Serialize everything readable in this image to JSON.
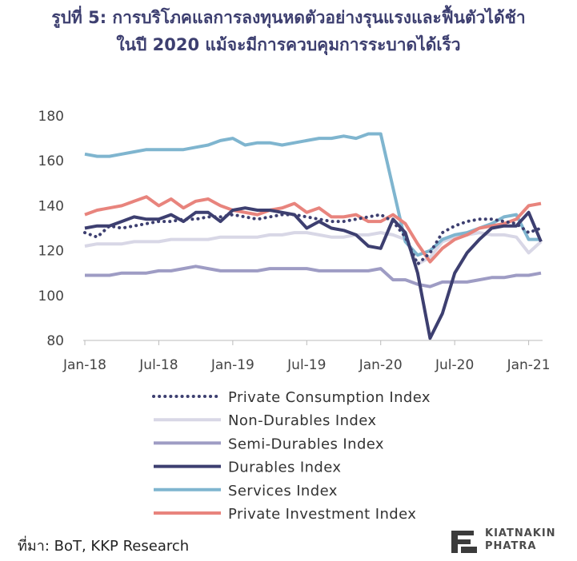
{
  "header": {
    "title_line1": "รูปที่ 5: การบริโภคแลการลงทุนหดตัวอย่างรุนแรงและฟื้นตัวได้ช้า",
    "title_line2": "ในปี 2020 แม้จะมีการควบคุมการระบาดได้เร็ว"
  },
  "footer": {
    "source_label": "ที่มา",
    "source_text": ": BoT, KKP Research",
    "logo_line1": "KIATNAKIN",
    "logo_line2": "PHATRA"
  },
  "chart_data": {
    "type": "line",
    "x": [
      "Jan-18",
      "Feb-18",
      "Mar-18",
      "Apr-18",
      "May-18",
      "Jun-18",
      "Jul-18",
      "Aug-18",
      "Sep-18",
      "Oct-18",
      "Nov-18",
      "Dec-18",
      "Jan-19",
      "Feb-19",
      "Mar-19",
      "Apr-19",
      "May-19",
      "Jun-19",
      "Jul-19",
      "Aug-19",
      "Sep-19",
      "Oct-19",
      "Nov-19",
      "Dec-19",
      "Jan-20",
      "Feb-20",
      "Mar-20",
      "Apr-20",
      "May-20",
      "Jun-20",
      "Jul-20",
      "Aug-20",
      "Sep-20",
      "Oct-20",
      "Nov-20",
      "Dec-20",
      "Jan-21",
      "Feb-21"
    ],
    "x_tick_labels": [
      "Jan-18",
      "Jul-18",
      "Jan-19",
      "Jul-19",
      "Jan-20",
      "Jul-20",
      "Jan-21"
    ],
    "y_ticks": [
      80,
      100,
      120,
      140,
      160,
      180
    ],
    "ylim": [
      80,
      180
    ],
    "grid": false,
    "legend_position": "bottom",
    "series": [
      {
        "name": "Private Consumption Index",
        "color": "#3d3f70",
        "dash": "dotted",
        "values": [
          128,
          126,
          131,
          130,
          131,
          132,
          133,
          133,
          134,
          134,
          135,
          135,
          136,
          135,
          134,
          135,
          136,
          136,
          135,
          134,
          133,
          133,
          134,
          135,
          136,
          133,
          126,
          114,
          119,
          128,
          131,
          133,
          134,
          134,
          133,
          132,
          128,
          130
        ]
      },
      {
        "name": "Non-Durables Index",
        "color": "#d8d7e6",
        "dash": "solid",
        "values": [
          122,
          123,
          123,
          123,
          124,
          124,
          124,
          125,
          125,
          125,
          125,
          126,
          126,
          126,
          126,
          127,
          127,
          128,
          128,
          127,
          126,
          126,
          127,
          127,
          128,
          127,
          125,
          114,
          117,
          124,
          126,
          127,
          128,
          127,
          127,
          126,
          119,
          124
        ]
      },
      {
        "name": "Semi-Durables Index",
        "color": "#9e9cc4",
        "dash": "solid",
        "values": [
          109,
          109,
          109,
          110,
          110,
          110,
          111,
          111,
          112,
          113,
          112,
          111,
          111,
          111,
          111,
          112,
          112,
          112,
          112,
          111,
          111,
          111,
          111,
          111,
          112,
          107,
          107,
          105,
          104,
          106,
          106,
          106,
          107,
          108,
          108,
          109,
          109,
          110
        ]
      },
      {
        "name": "Durables Index",
        "color": "#3d3f70",
        "dash": "solid",
        "values": [
          130,
          131,
          131,
          133,
          135,
          134,
          134,
          136,
          133,
          137,
          137,
          133,
          138,
          139,
          138,
          138,
          137,
          136,
          130,
          133,
          130,
          129,
          127,
          122,
          121,
          134,
          128,
          110,
          81,
          92,
          110,
          119,
          125,
          130,
          131,
          131,
          137,
          124
        ]
      },
      {
        "name": "Services Index",
        "color": "#7fb5cf",
        "dash": "solid",
        "values": [
          163,
          162,
          162,
          163,
          164,
          165,
          165,
          165,
          165,
          166,
          167,
          169,
          170,
          167,
          168,
          168,
          167,
          168,
          169,
          170,
          170,
          171,
          170,
          172,
          172,
          148,
          124,
          118,
          120,
          125,
          127,
          128,
          130,
          132,
          135,
          136,
          125,
          125
        ]
      },
      {
        "name": "Private Investment Index",
        "color": "#e8847d",
        "dash": "solid",
        "values": [
          136,
          138,
          139,
          140,
          142,
          144,
          140,
          143,
          139,
          142,
          143,
          140,
          138,
          137,
          136,
          138,
          139,
          141,
          137,
          139,
          135,
          135,
          136,
          133,
          133,
          136,
          132,
          123,
          115,
          121,
          125,
          127,
          130,
          131,
          132,
          134,
          140,
          141
        ]
      }
    ]
  }
}
